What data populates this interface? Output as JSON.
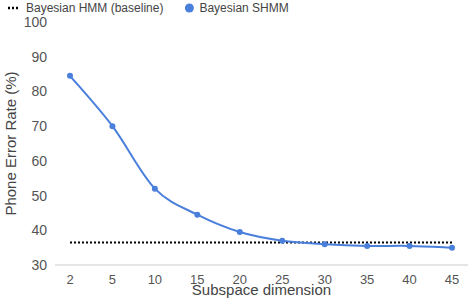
{
  "chart_data": {
    "type": "line",
    "x_label": "Subspace dimension",
    "y_label": "Phone Error Rate (%)",
    "categories": [
      "2",
      "5",
      "10",
      "15",
      "20",
      "25",
      "30",
      "35",
      "40",
      "45"
    ],
    "series": [
      {
        "name": "Bayesian HMM (baseline)",
        "color": "#000000",
        "line_style": "dotted",
        "marker": "none",
        "values": [
          36.5,
          36.5,
          36.5,
          36.5,
          36.5,
          36.5,
          36.5,
          36.5,
          36.5,
          36.5
        ]
      },
      {
        "name": "Bayesian SHMM",
        "color": "#4a7fdc",
        "line_style": "solid",
        "marker": "circle",
        "values": [
          84.5,
          70,
          52,
          44.5,
          39.5,
          37,
          36,
          35.5,
          35.5,
          35
        ]
      }
    ],
    "ylim": [
      30,
      100
    ],
    "yticks": [
      30,
      40,
      50,
      60,
      70,
      80,
      90,
      100
    ],
    "grid": false,
    "legend": "top"
  }
}
